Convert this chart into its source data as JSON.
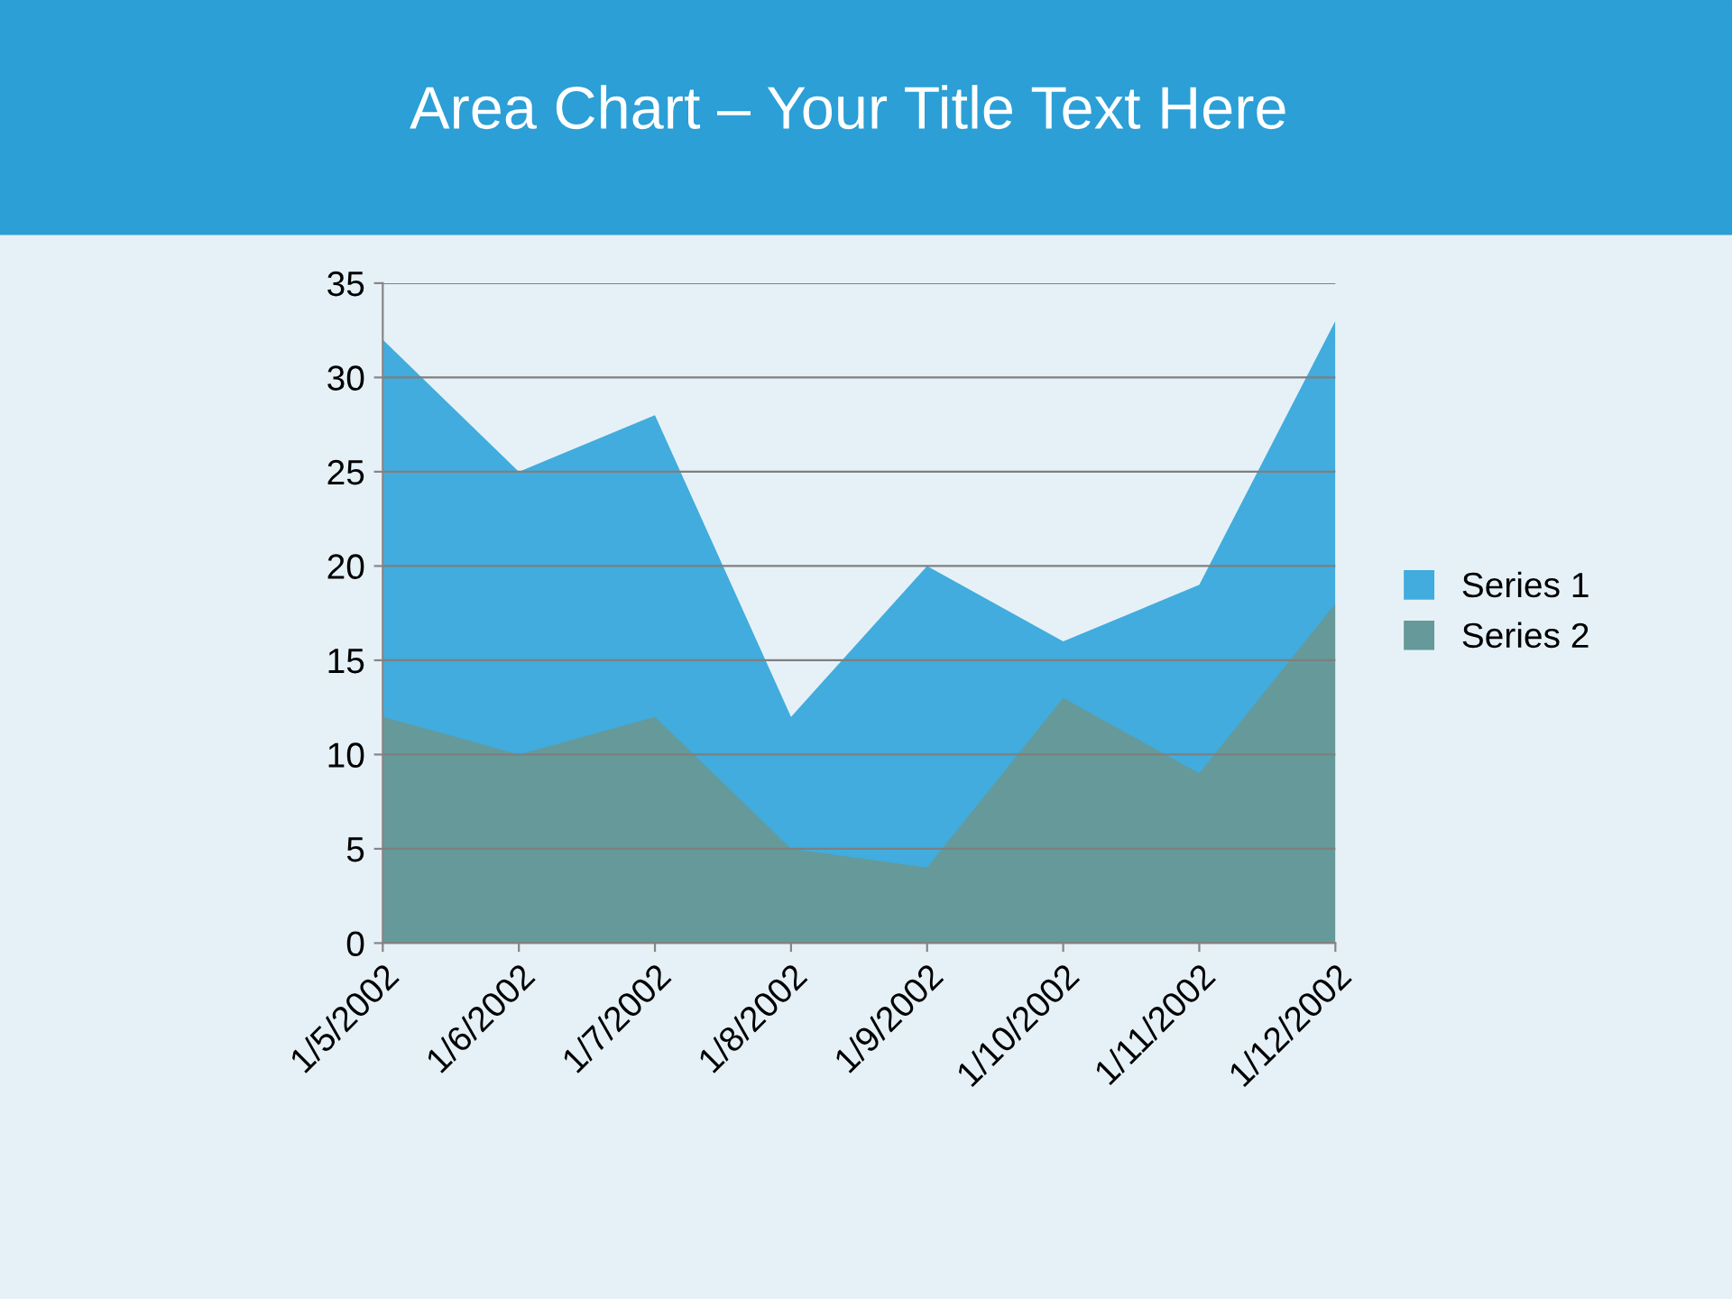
{
  "chart_data": {
    "type": "area",
    "title": "Area Chart – Your Title Text Here",
    "categories": [
      "1/5/2002",
      "1/6/2002",
      "1/7/2002",
      "1/8/2002",
      "1/9/2002",
      "1/10/2002",
      "1/11/2002",
      "1/12/2002"
    ],
    "series": [
      {
        "name": "Series 1",
        "color": "#41acdd",
        "values": [
          32,
          25,
          28,
          12,
          20,
          16,
          19,
          33
        ]
      },
      {
        "name": "Series 2",
        "color": "#669999",
        "values": [
          12,
          10,
          12,
          5,
          4,
          13,
          9,
          18
        ]
      }
    ],
    "ylim": [
      0,
      35
    ],
    "yticks": [
      0,
      5,
      10,
      15,
      20,
      25,
      30,
      35
    ],
    "grid": "y",
    "legend": "right"
  }
}
